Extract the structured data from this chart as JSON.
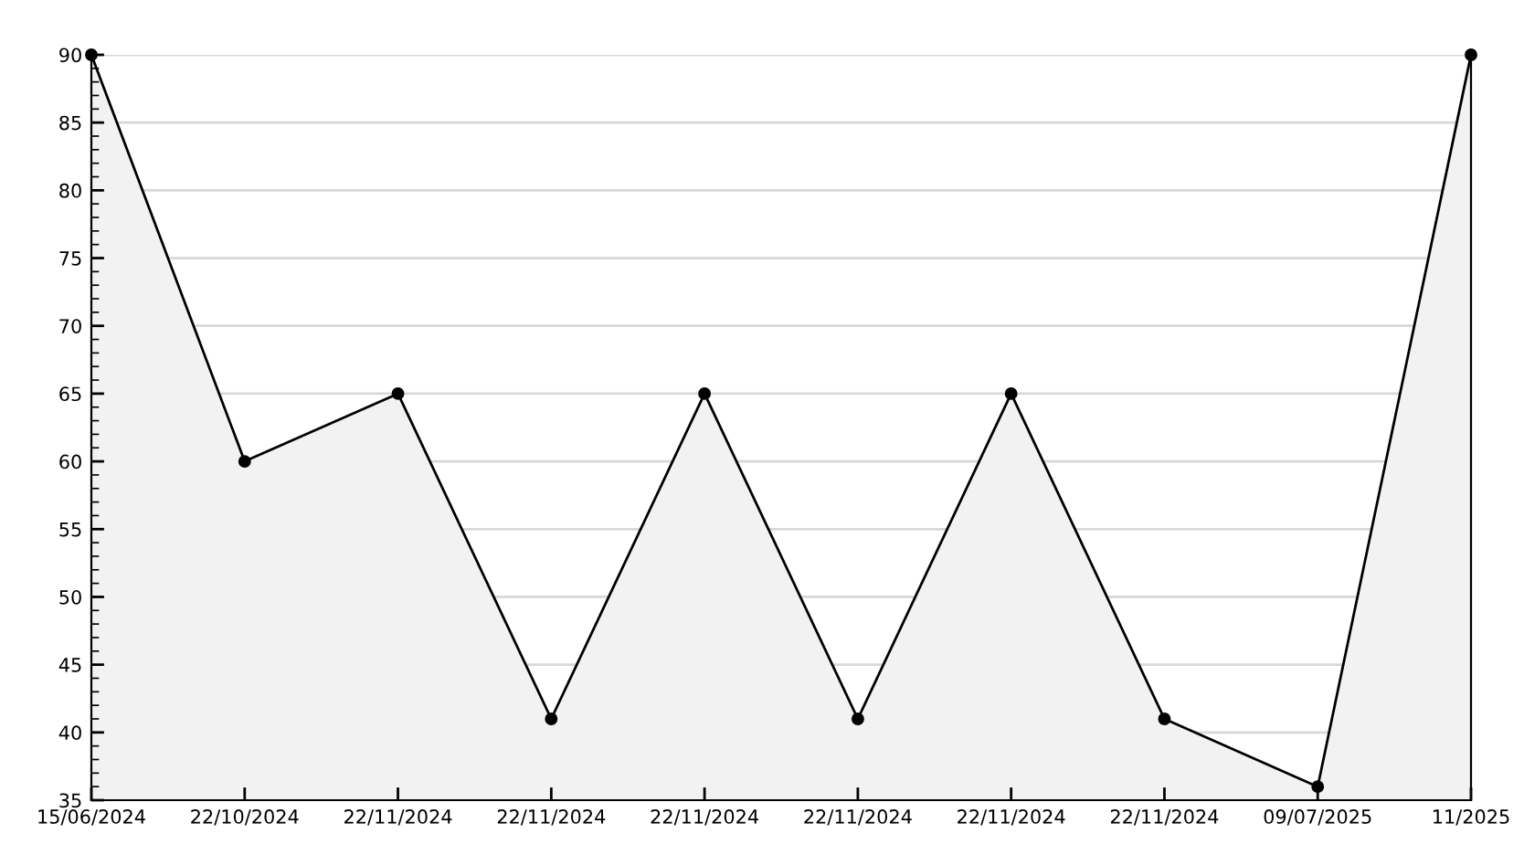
{
  "chart_data": {
    "type": "area",
    "categories": [
      "15/06/2024",
      "22/10/2024",
      "22/11/2024",
      "22/11/2024",
      "22/11/2024",
      "22/11/2024",
      "22/11/2024",
      "22/11/2024",
      "09/07/2025",
      "11/2025"
    ],
    "series": [
      {
        "color": "#000000",
        "values": [
          90,
          60,
          65,
          41,
          65,
          41,
          65,
          41,
          36,
          90
        ]
      }
    ],
    "ylim": [
      35,
      90
    ],
    "yticks": [
      35,
      40,
      45,
      50,
      55,
      60,
      65,
      70,
      75,
      80,
      85,
      90
    ],
    "grid": "y",
    "marker": "circle",
    "line_style": "solid"
  }
}
